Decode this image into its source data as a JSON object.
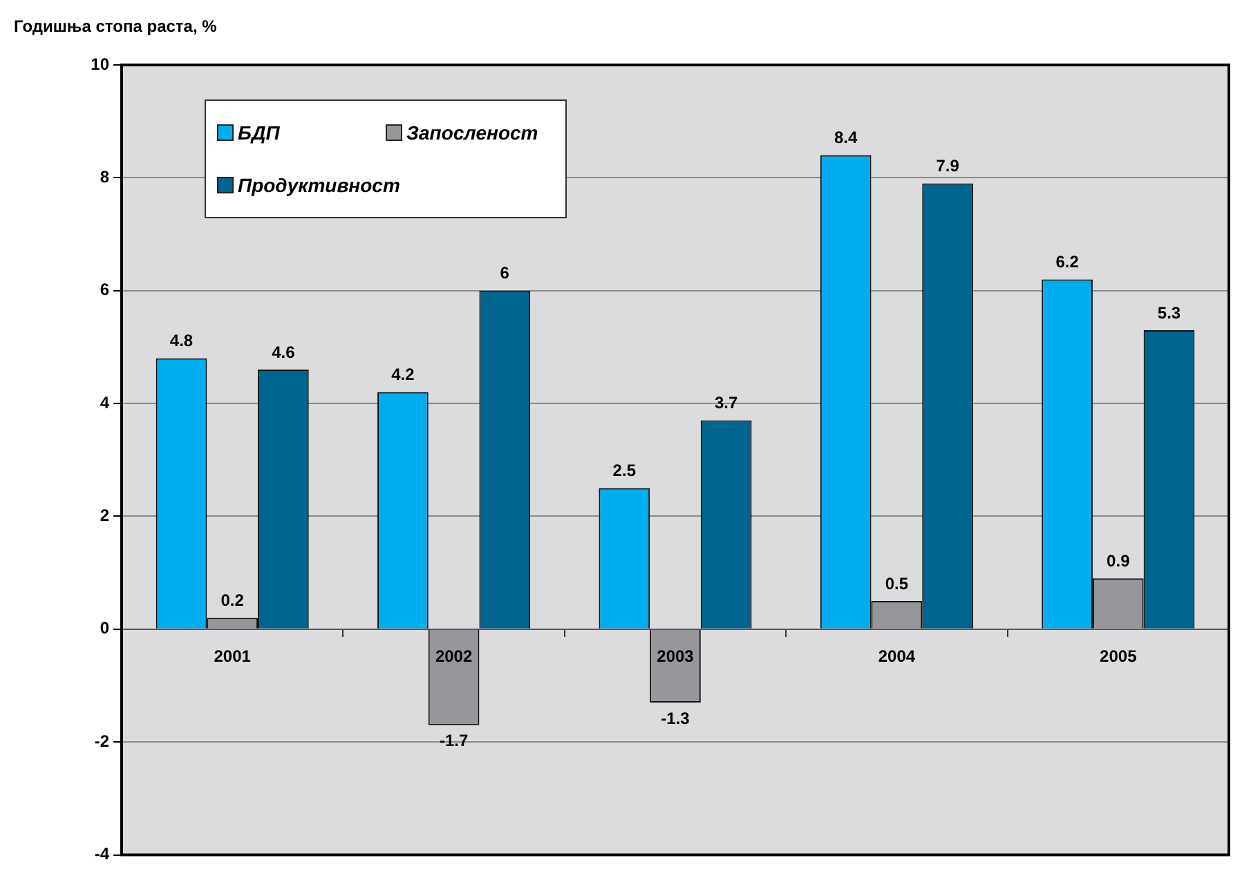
{
  "chart_data": {
    "type": "bar",
    "ylabel": "Годишња стопа раста, %",
    "categories": [
      "2001",
      "2002",
      "2003",
      "2004",
      "2005"
    ],
    "series": [
      {
        "name": "БДП",
        "color": "#00adef",
        "values": [
          4.8,
          4.2,
          2.5,
          8.4,
          6.2
        ]
      },
      {
        "name": "Запосленост",
        "color": "#96969b",
        "values": [
          0.2,
          -1.7,
          -1.3,
          0.5,
          0.9
        ]
      },
      {
        "name": "Продуктивност",
        "color": "#00668f",
        "values": [
          4.6,
          6,
          3.7,
          7.9,
          5.3
        ]
      }
    ],
    "ylim": [
      -4,
      10
    ],
    "yticks": [
      -4,
      -2,
      0,
      2,
      4,
      6,
      8,
      10
    ],
    "grid": "y",
    "legend": "top left",
    "data_labels": true
  }
}
